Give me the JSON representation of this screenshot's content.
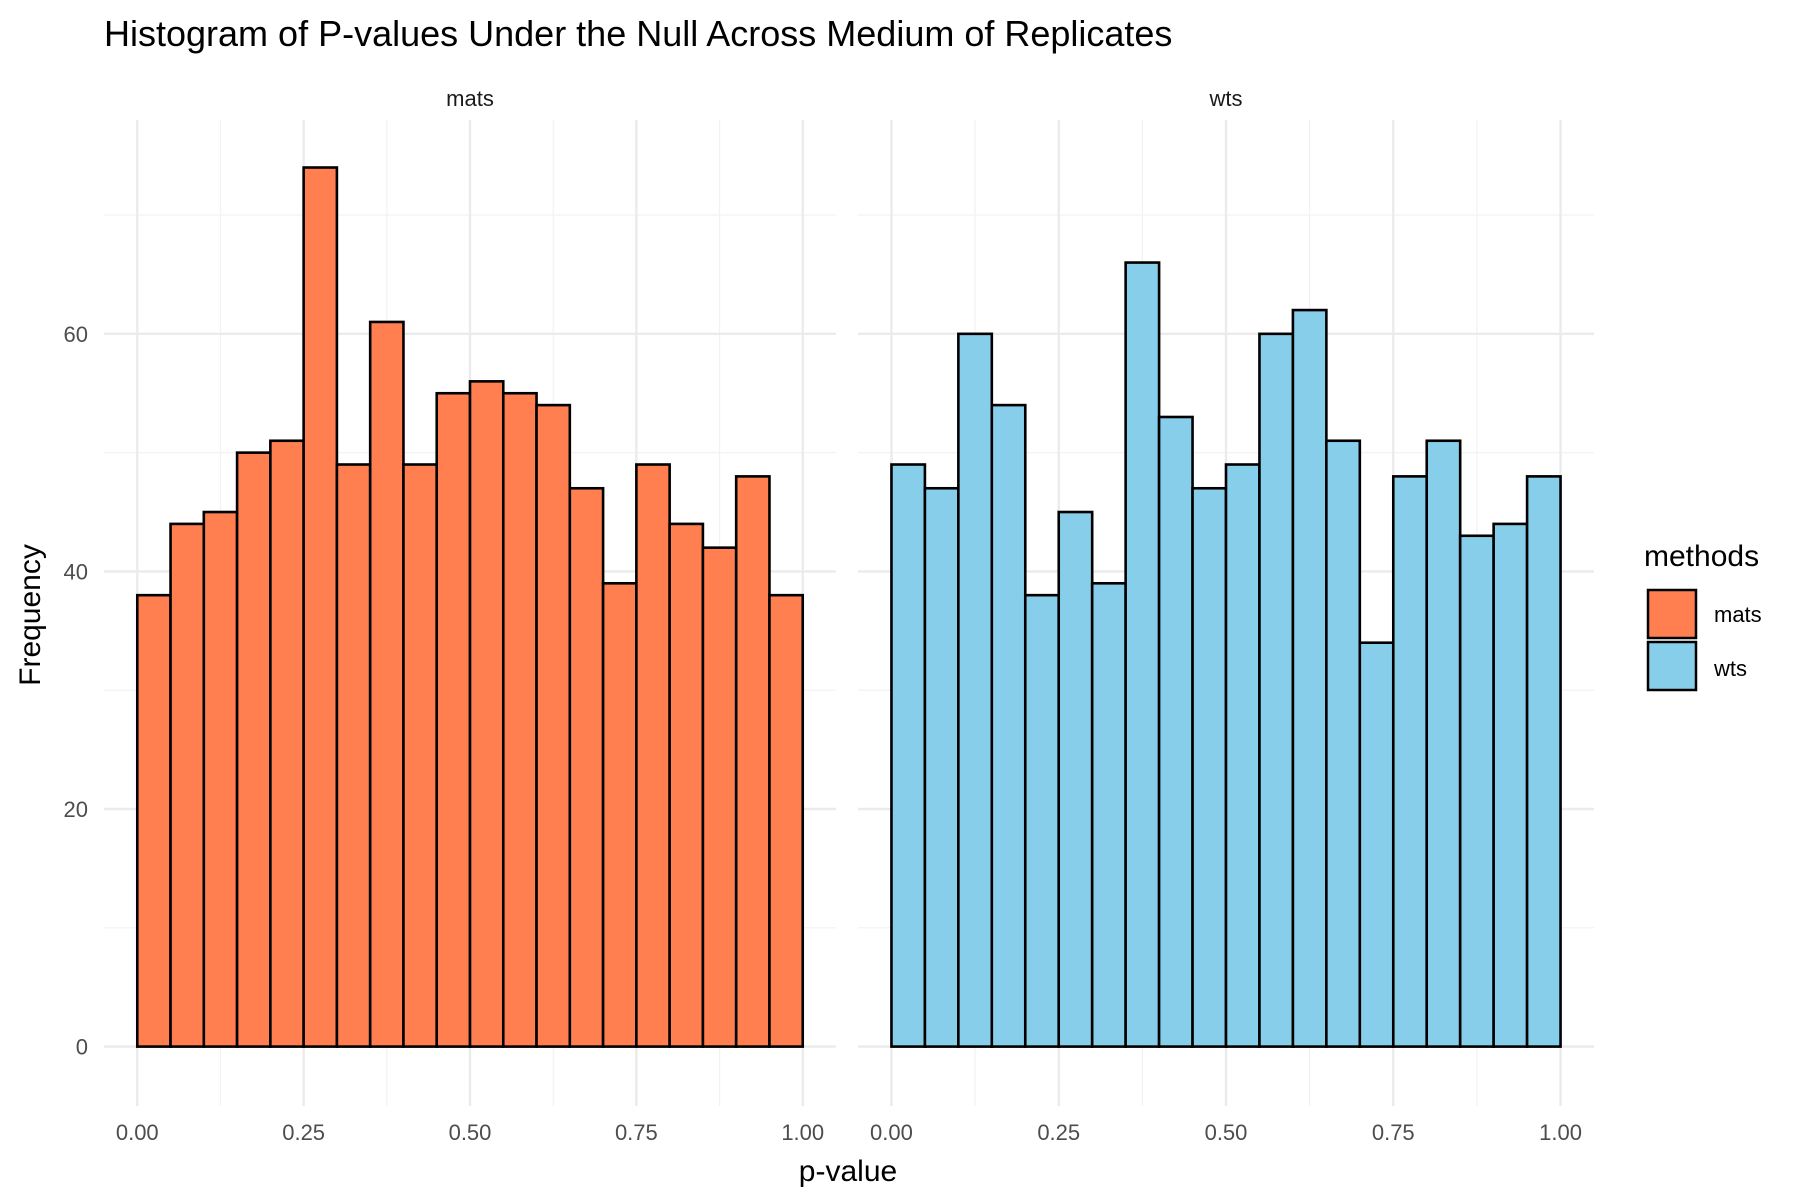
{
  "chart_data": {
    "type": "bar",
    "title": "Histogram of P-values Under the Null Across Medium of Replicates",
    "xlabel": "p-value",
    "ylabel": "Frequency",
    "xlim": [
      -0.05,
      1.05
    ],
    "ylim": [
      -5,
      78
    ],
    "x_ticks": [
      "0.00",
      "0.25",
      "0.50",
      "0.75",
      "1.00"
    ],
    "x_tick_values": [
      0,
      0.25,
      0.5,
      0.75,
      1.0
    ],
    "y_ticks": [
      "0",
      "20",
      "40",
      "60"
    ],
    "y_tick_values": [
      0,
      20,
      40,
      60
    ],
    "grid": true,
    "legend": {
      "title": "methods",
      "position": "right"
    },
    "bin_edges": [
      0.0,
      0.05,
      0.1,
      0.15,
      0.2,
      0.25,
      0.3,
      0.35,
      0.4,
      0.45,
      0.5,
      0.55,
      0.6,
      0.65,
      0.7,
      0.75,
      0.8,
      0.85,
      0.9,
      0.95,
      1.0
    ],
    "series": [
      {
        "name": "mats",
        "color": "#FF7F50",
        "values": [
          38,
          44,
          45,
          50,
          51,
          74,
          49,
          61,
          49,
          55,
          56,
          55,
          54,
          47,
          39,
          49,
          44,
          42,
          48,
          38
        ]
      },
      {
        "name": "wts",
        "color": "#87CEEB",
        "values": [
          49,
          47,
          60,
          54,
          38,
          45,
          39,
          66,
          53,
          47,
          49,
          60,
          62,
          51,
          34,
          48,
          51,
          43,
          44,
          48
        ]
      }
    ]
  }
}
